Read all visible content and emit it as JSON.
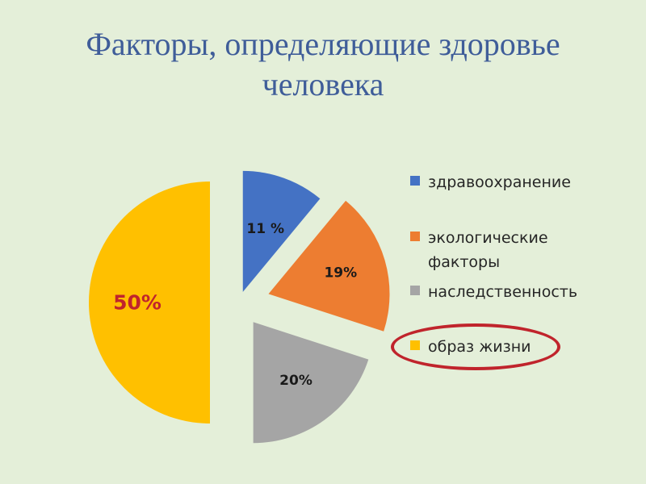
{
  "slide": {
    "title_line1": "Факторы, определяющие здоровье",
    "title_line2": "человека"
  },
  "colors": {
    "background": "#e4efd9",
    "title": "#3f5d99",
    "highlight_ring": "#c0242c",
    "big_label": "#c0242c"
  },
  "chart_data": {
    "type": "pie",
    "style": "exploded",
    "legend_position": "right",
    "slices": [
      {
        "name": "здравоохранение",
        "value": 11,
        "label": "11 %",
        "color": "#4472c4"
      },
      {
        "name": "экологические факторы",
        "value": 19,
        "label": "19%",
        "color": "#ed7d31"
      },
      {
        "name": "наследственность",
        "value": 20,
        "label": "20%",
        "color": "#a5a5a5"
      },
      {
        "name": "образ жизни",
        "value": 50,
        "label": "50%",
        "color": "#ffc000"
      }
    ],
    "highlighted_legend_entry": "образ жизни"
  }
}
